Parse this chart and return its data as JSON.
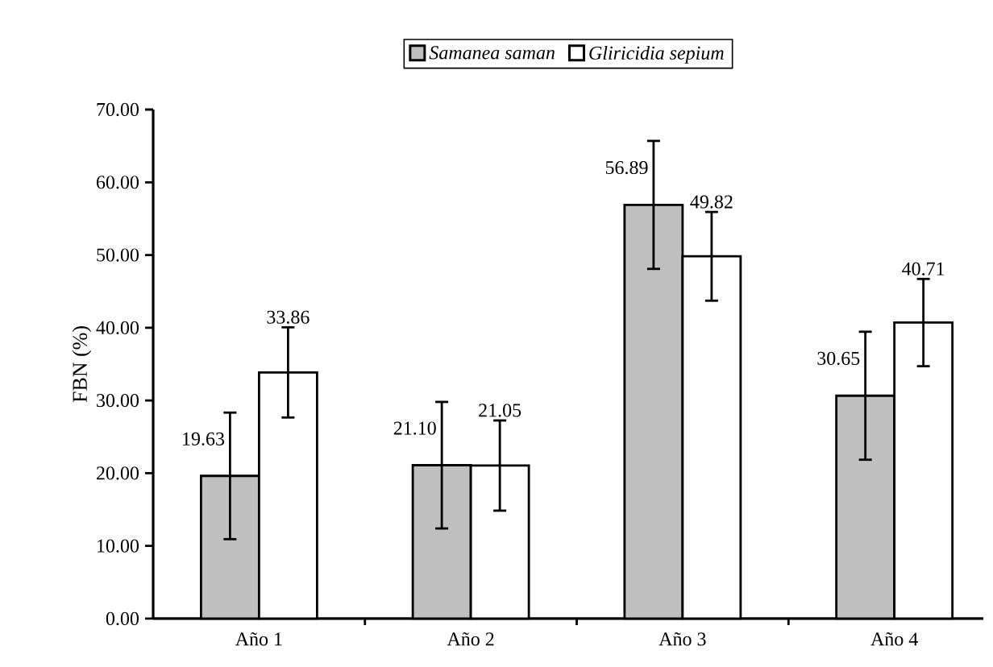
{
  "chart_data": {
    "type": "bar",
    "ylabel": "FBN (%)",
    "categories": [
      "Año 1",
      "Año 2",
      "Año 3",
      "Año 4"
    ],
    "series": [
      {
        "name": "Samanea saman",
        "color": "#c0c0c0",
        "values": [
          19.63,
          21.1,
          56.89,
          30.65
        ],
        "errors": [
          8.7,
          8.7,
          8.8,
          8.8
        ],
        "value_labels": [
          "19.63",
          "21.10",
          "56.89",
          "30.65"
        ]
      },
      {
        "name": "Gliricidia sepium",
        "color": "#ffffff",
        "values": [
          33.86,
          21.05,
          49.82,
          40.71
        ],
        "errors": [
          6.2,
          6.2,
          6.1,
          6.0
        ],
        "value_labels": [
          "33.86",
          "21.05",
          "49.82",
          "40.71"
        ]
      }
    ],
    "ylim": [
      0,
      70
    ],
    "yticks": [
      {
        "value": 0,
        "label": "0.00"
      },
      {
        "value": 10,
        "label": "10.00"
      },
      {
        "value": 20,
        "label": "20.00"
      },
      {
        "value": 30,
        "label": "30.00"
      },
      {
        "value": 40,
        "label": "40.00"
      },
      {
        "value": 50,
        "label": "50.00"
      },
      {
        "value": 60,
        "label": "60.00"
      },
      {
        "value": 70,
        "label": "70.00"
      }
    ],
    "legend": "top",
    "grid": false
  }
}
